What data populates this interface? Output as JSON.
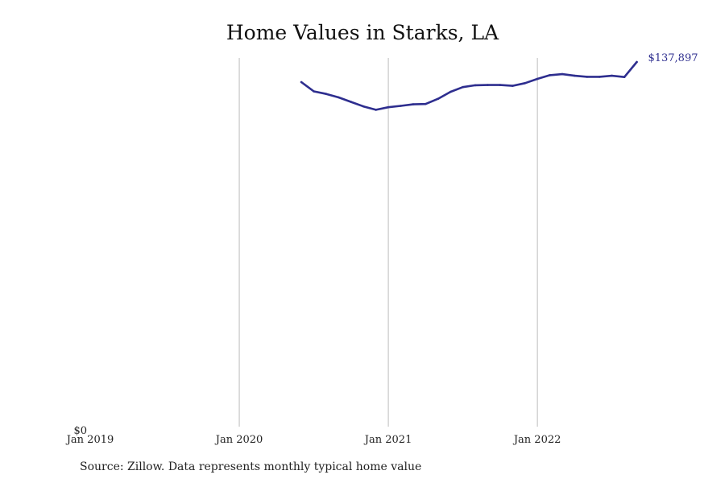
{
  "chart_data": {
    "type": "line",
    "title": "Home Values in Starks, LA",
    "xlabel": "",
    "ylabel": "",
    "x_tick_labels": [
      "Jan 2019",
      "Jan 2020",
      "Jan 2021",
      "Jan 2022"
    ],
    "y_tick_labels": [
      "$0"
    ],
    "xlim": [
      "2019-01",
      "2022-10"
    ],
    "ylim": [
      0,
      137897
    ],
    "grid": "vertical lines at each year",
    "legend": "none",
    "end_label": "$137,897",
    "colors": {
      "line": "#2e2e8f",
      "grid": "#bbbbbb"
    },
    "series": [
      {
        "x": [
          "2020-06",
          "2020-07",
          "2020-08",
          "2020-09",
          "2020-10",
          "2020-11",
          "2020-12",
          "2021-01",
          "2021-02",
          "2021-03",
          "2021-04",
          "2021-05",
          "2021-06",
          "2021-07",
          "2021-08",
          "2021-09",
          "2021-10",
          "2021-11",
          "2021-12",
          "2022-01",
          "2022-02",
          "2022-03",
          "2022-04",
          "2022-05",
          "2022-06",
          "2022-07",
          "2022-08",
          "2022-09"
        ],
        "values": [
          130300,
          126800,
          125800,
          124500,
          122800,
          121100,
          119800,
          120800,
          121300,
          121900,
          122000,
          124000,
          126600,
          128400,
          129100,
          129200,
          129200,
          128900,
          129900,
          131500,
          132900,
          133300,
          132700,
          132300,
          132300,
          132700,
          132200,
          137897
        ]
      }
    ]
  },
  "source_note": "Source: Zillow. Data represents monthly typical home value"
}
